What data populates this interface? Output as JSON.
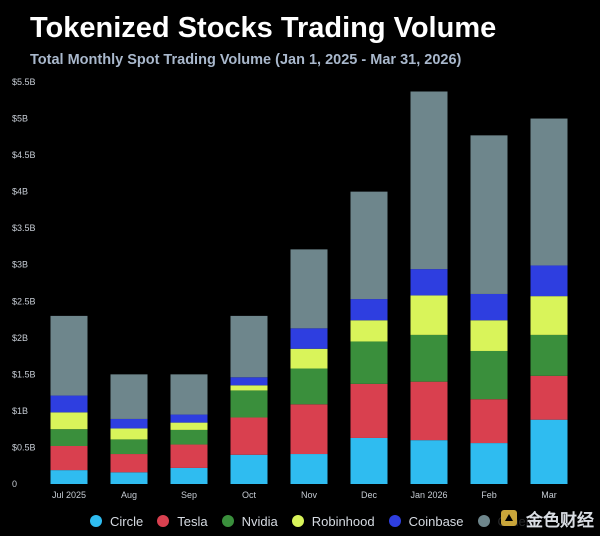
{
  "header": {
    "title": "Tokenized Stocks Trading Volume",
    "subtitle": "Total Monthly Spot Trading Volume (Jan 1, 2025 - Mar 31, 2026)"
  },
  "watermark": {
    "text": "金色财经"
  },
  "chart_data": {
    "type": "bar",
    "stacked": true,
    "title": "Tokenized Stocks Trading Volume",
    "subtitle": "Total Monthly Spot Trading Volume (Jan 1, 2025 - Mar 31, 2026)",
    "categories": [
      "Jul 2025",
      "Aug",
      "Sep",
      "Oct",
      "Nov",
      "Dec",
      "Jan 2026",
      "Feb",
      "Mar"
    ],
    "y_ticks": [
      {
        "value": 0,
        "label": "0"
      },
      {
        "value": 0.5,
        "label": "$0.5B"
      },
      {
        "value": 1,
        "label": "$1B"
      },
      {
        "value": 1.5,
        "label": "$1.5B"
      },
      {
        "value": 2,
        "label": "$2B"
      },
      {
        "value": 2.5,
        "label": "$2.5B"
      },
      {
        "value": 3,
        "label": "$3B"
      },
      {
        "value": 3.5,
        "label": "$3.5B"
      },
      {
        "value": 4,
        "label": "$4B"
      },
      {
        "value": 4.5,
        "label": "$4.5B"
      },
      {
        "value": 5,
        "label": "$5B"
      },
      {
        "value": 5.5,
        "label": "$5.5B"
      }
    ],
    "ylim": [
      0,
      5.5
    ],
    "grid": false,
    "legend": "bottom",
    "series": [
      {
        "name": "Circle",
        "color": "#2fbcf0",
        "values": [
          0.19,
          0.16,
          0.22,
          0.4,
          0.41,
          0.63,
          0.6,
          0.56,
          0.88
        ]
      },
      {
        "name": "Tesla",
        "color": "#d9404f",
        "values": [
          0.33,
          0.25,
          0.32,
          0.51,
          0.68,
          0.74,
          0.8,
          0.6,
          0.6
        ]
      },
      {
        "name": "Nvidia",
        "color": "#3a8f3c",
        "values": [
          0.23,
          0.2,
          0.2,
          0.37,
          0.49,
          0.58,
          0.64,
          0.66,
          0.56
        ]
      },
      {
        "name": "Robinhood",
        "color": "#d9f45a",
        "values": [
          0.23,
          0.15,
          0.1,
          0.07,
          0.27,
          0.29,
          0.54,
          0.42,
          0.53
        ]
      },
      {
        "name": "Coinbase",
        "color": "#2e3ee0",
        "values": [
          0.23,
          0.13,
          0.11,
          0.11,
          0.28,
          0.29,
          0.36,
          0.36,
          0.42
        ]
      },
      {
        "name": "Others",
        "color": "#6e868c",
        "values": [
          1.09,
          0.61,
          0.55,
          0.84,
          1.08,
          1.47,
          2.43,
          2.17,
          2.01
        ]
      }
    ]
  }
}
